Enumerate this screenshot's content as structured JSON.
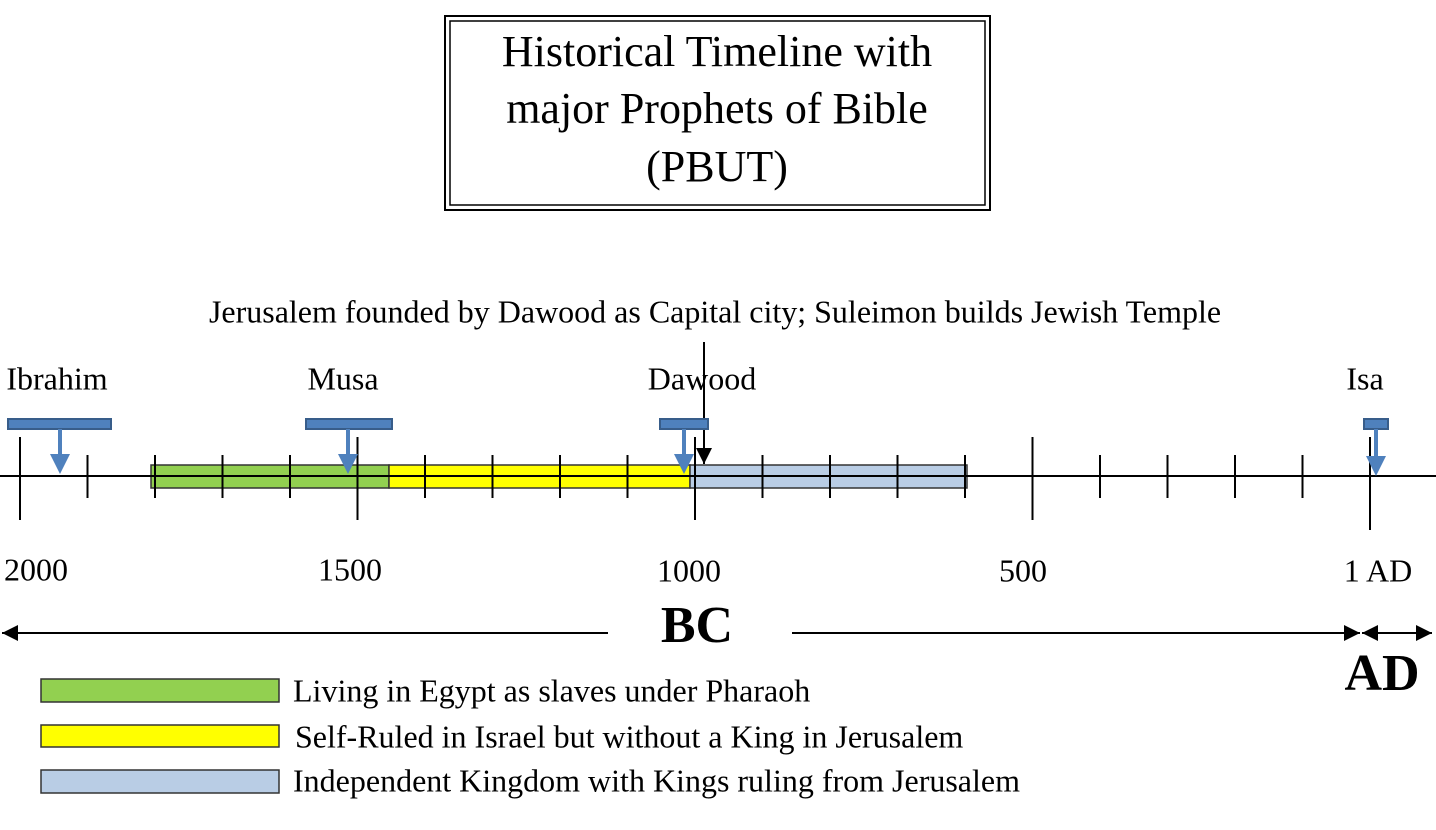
{
  "title": {
    "lines": [
      "Historical Timeline with",
      "major Prophets of Bible",
      "(PBUT)"
    ]
  },
  "annotation": "Jerusalem founded by Dawood as Capital city; Suleimon builds Jewish Temple",
  "prophets": [
    "Ibrahim",
    "Musa",
    "Dawood",
    "Isa"
  ],
  "axis_labels": [
    "2000",
    "1500",
    "1000",
    "500",
    "1 AD"
  ],
  "eras": [
    "BC",
    "AD"
  ],
  "legend": [
    "Living in Egypt as slaves under Pharaoh",
    "Self-Ruled in Israel but without a King in Jerusalem",
    "Independent Kingdom with Kings ruling from Jerusalem"
  ]
}
